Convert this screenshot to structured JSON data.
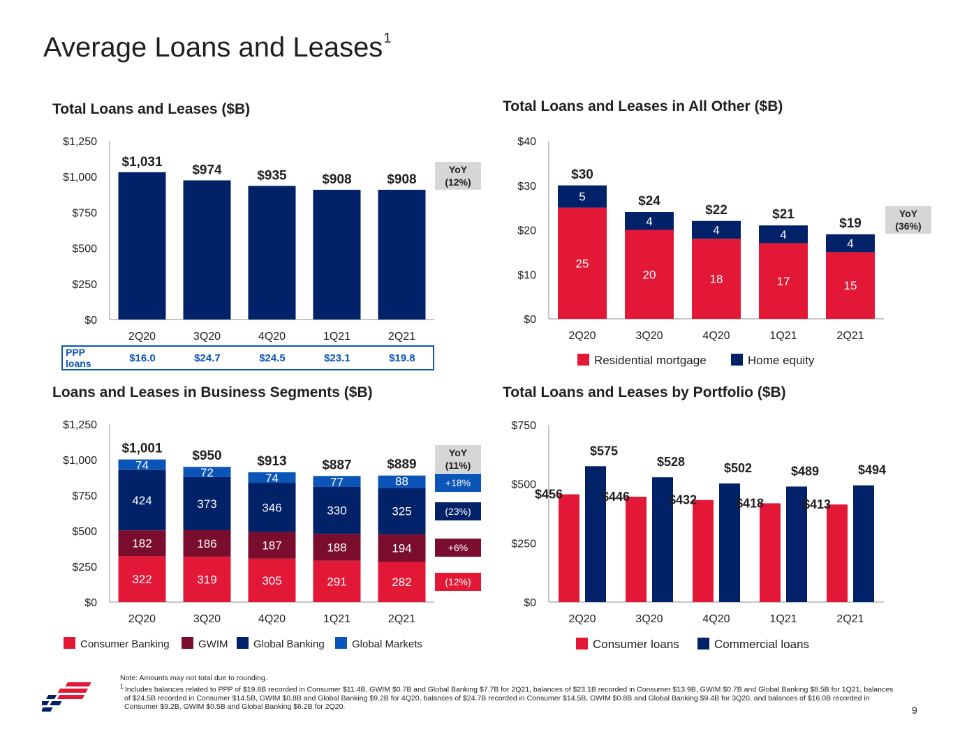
{
  "page": {
    "title": "Average Loans and Leases",
    "title_sup": "1",
    "page_number": "9"
  },
  "colors": {
    "navy": "#012169",
    "red": "#e31837",
    "maroon": "#7a0c2e",
    "blue": "#0b54b8",
    "gray_box": "#d6d6d6"
  },
  "ppp": {
    "label": "PPP loans",
    "values": [
      "$16.0",
      "$24.7",
      "$24.5",
      "$23.1",
      "$19.8"
    ]
  },
  "footnote": {
    "note": "Note: Amounts may not total due to rounding.",
    "marker": "1",
    "text": "Includes balances related to PPP of $19.8B recorded in Consumer $11.4B, GWIM $0.7B and Global Banking $7.7B for 2Q21, balances of $23.1B recorded in Consumer $13.9B, GWIM $0.7B and Global Banking $8.5B for 1Q21, balances of $24.5B recorded in Consumer $14.5B, GWIM $0.8B and Global Banking $9.2B for 4Q20, balances of $24.7B recorded in Consumer $14.5B, GWIM $0.8B and Global Banking $9.4B for 3Q20, and balances of $16.0B recorded in Consumer $9.2B, GWIM $0.5B and Global Banking $6.2B for 2Q20."
  },
  "chart_data": [
    {
      "id": "total",
      "type": "bar",
      "title": "Total Loans and Leases ($B)",
      "categories": [
        "2Q20",
        "3Q20",
        "4Q20",
        "1Q21",
        "2Q21"
      ],
      "values": [
        1031,
        974,
        935,
        908,
        908
      ],
      "value_labels": [
        "$1,031",
        "$974",
        "$935",
        "$908",
        "$908"
      ],
      "ylim": [
        0,
        1250
      ],
      "yticks": [
        0,
        250,
        500,
        750,
        1000,
        1250
      ],
      "ytick_labels": [
        "$0",
        "$250",
        "$500",
        "$750",
        "$1,000",
        "$1,250"
      ],
      "yoy": {
        "label": "YoY",
        "value": "(12%)"
      },
      "grid": false
    },
    {
      "id": "allother",
      "type": "bar",
      "stacked": true,
      "title": "Total Loans and Leases in All Other ($B)",
      "categories": [
        "2Q20",
        "3Q20",
        "4Q20",
        "1Q21",
        "2Q21"
      ],
      "series": [
        {
          "name": "Residential mortgage",
          "values": [
            25,
            20,
            18,
            17,
            15
          ]
        },
        {
          "name": "Home equity",
          "values": [
            5,
            4,
            4,
            4,
            4
          ]
        }
      ],
      "total_labels": [
        "$30",
        "$24",
        "$22",
        "$21",
        "$19"
      ],
      "ylim": [
        0,
        40
      ],
      "yticks": [
        0,
        10,
        20,
        30,
        40
      ],
      "ytick_labels": [
        "$0",
        "$10",
        "$20",
        "$30",
        "$40"
      ],
      "yoy": {
        "label": "YoY",
        "value": "(36%)"
      },
      "legend": "bottom",
      "grid": false
    },
    {
      "id": "segments",
      "type": "bar",
      "stacked": true,
      "title": "Loans and Leases in Business Segments ($B)",
      "categories": [
        "2Q20",
        "3Q20",
        "4Q20",
        "1Q21",
        "2Q21"
      ],
      "series": [
        {
          "name": "Consumer Banking",
          "values": [
            322,
            319,
            305,
            291,
            282
          ],
          "yoy": "(12%)"
        },
        {
          "name": "GWIM",
          "values": [
            182,
            186,
            187,
            188,
            194
          ],
          "yoy": "+6%"
        },
        {
          "name": "Global Banking",
          "values": [
            424,
            373,
            346,
            330,
            325
          ],
          "yoy": "(23%)"
        },
        {
          "name": "Global Markets",
          "values": [
            74,
            72,
            74,
            77,
            88
          ],
          "yoy": "+18%"
        }
      ],
      "total_labels": [
        "$1,001",
        "$950",
        "$913",
        "$887",
        "$889"
      ],
      "ylim": [
        0,
        1250
      ],
      "yticks": [
        0,
        250,
        500,
        750,
        1000,
        1250
      ],
      "ytick_labels": [
        "$0",
        "$250",
        "$500",
        "$750",
        "$1,000",
        "$1,250"
      ],
      "yoy": {
        "label": "YoY",
        "value": "(11%)"
      },
      "legend": "bottom",
      "grid": false
    },
    {
      "id": "portfolio",
      "type": "bar",
      "title": "Total Loans and Leases by Portfolio ($B)",
      "categories": [
        "2Q20",
        "3Q20",
        "4Q20",
        "1Q21",
        "2Q21"
      ],
      "series": [
        {
          "name": "Consumer loans",
          "values": [
            456,
            446,
            432,
            418,
            413
          ],
          "labels": [
            "$456",
            "$446",
            "$432",
            "$418",
            "$413"
          ]
        },
        {
          "name": "Commercial loans",
          "values": [
            575,
            528,
            502,
            489,
            494
          ],
          "labels": [
            "$575",
            "$528",
            "$502",
            "$489",
            "$494"
          ]
        }
      ],
      "ylim": [
        0,
        750
      ],
      "yticks": [
        0,
        250,
        500,
        750
      ],
      "ytick_labels": [
        "$0",
        "$250",
        "$500",
        "$750"
      ],
      "legend": "bottom",
      "grid": false
    }
  ]
}
